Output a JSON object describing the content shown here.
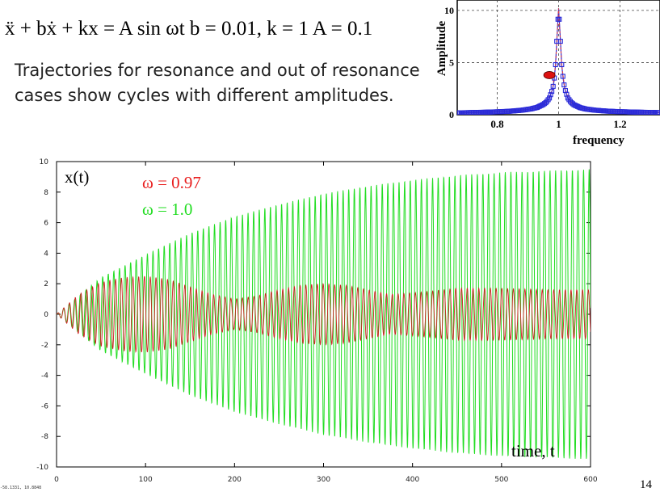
{
  "slide": {
    "equation": "ẍ + bẋ + kx = A sin ωt   b = 0.01, k = 1   A = 0.1",
    "description_lines": [
      "Trajectories for resonance and out of resonance",
      "cases show cycles with different amplitudes."
    ],
    "page_number": "14",
    "coordinate_readout": "-58.1331, 10.8848"
  },
  "chart_data": [
    {
      "type": "line",
      "title": "",
      "xlabel": "frequency",
      "ylabel": "Amplitude",
      "xlim": [
        0.67,
        1.33
      ],
      "ylim": [
        0,
        11
      ],
      "x_ticks": [
        0.8,
        1,
        1.2
      ],
      "x_tick_labels": [
        "0.8",
        "1",
        "1.2"
      ],
      "y_ticks": [
        0,
        5,
        10
      ],
      "y_tick_labels": [
        "0",
        "5",
        "10"
      ],
      "grid": true,
      "series": [
        {
          "color": "#2b2bd8",
          "x": [
            0.68,
            0.72,
            0.76,
            0.8,
            0.84,
            0.88,
            0.91,
            0.93,
            0.95,
            0.96,
            0.97,
            0.98,
            0.985,
            0.99,
            0.995,
            1.0,
            1.005,
            1.01,
            1.015,
            1.02,
            1.03,
            1.04,
            1.05,
            1.07,
            1.09,
            1.12,
            1.16,
            1.2,
            1.25,
            1.3,
            1.33
          ],
          "y": [
            0.18,
            0.21,
            0.24,
            0.28,
            0.33,
            0.43,
            0.56,
            0.7,
            0.98,
            1.2,
            1.6,
            2.4,
            3.2,
            4.8,
            7.6,
            10.2,
            7.6,
            4.8,
            3.4,
            2.5,
            1.6,
            1.2,
            0.95,
            0.68,
            0.54,
            0.43,
            0.34,
            0.29,
            0.25,
            0.22,
            0.2
          ]
        },
        {
          "color": "#e03a3a",
          "x": [
            0.68,
            0.8,
            0.88,
            0.93,
            0.96,
            0.98,
            0.99,
            1.0,
            1.01,
            1.02,
            1.04,
            1.07,
            1.12,
            1.2,
            1.33
          ],
          "y": [
            0.18,
            0.28,
            0.43,
            0.7,
            1.2,
            2.4,
            4.8,
            10.2,
            4.8,
            2.5,
            1.2,
            0.68,
            0.43,
            0.29,
            0.2
          ]
        }
      ],
      "marker_point": {
        "x": 0.97,
        "y": 3.8,
        "color": "#dd1111"
      }
    },
    {
      "type": "line",
      "title": "",
      "xlabel": "time, t",
      "ylabel": "x(t)",
      "xlim": [
        0,
        600
      ],
      "ylim": [
        -10,
        10
      ],
      "x_ticks": [
        0,
        100,
        200,
        300,
        400,
        500,
        600
      ],
      "x_tick_labels": [
        "0",
        "100",
        "200",
        "300",
        "400",
        "500",
        "600"
      ],
      "y_ticks": [
        10,
        8,
        6,
        4,
        2,
        0,
        -2,
        -4,
        -6,
        -8,
        -10
      ],
      "y_tick_labels": [
        "10",
        "8",
        "6",
        "4",
        "2",
        "0",
        "-2",
        "-4",
        "-6",
        "-8",
        "-10"
      ],
      "grid": false,
      "series": [
        {
          "name": "ω = 1.0",
          "color": "#22dd22",
          "omega": 1.0,
          "amplitude_envelope": {
            "t": [
              0,
              50,
              100,
              150,
              200,
              250,
              300,
              350,
              400,
              450,
              500,
              550,
              600
            ],
            "amp": [
              0,
              2.4,
              3.9,
              5.3,
              6.4,
              7.2,
              7.9,
              8.4,
              8.8,
              9.1,
              9.3,
              9.4,
              9.5
            ]
          }
        },
        {
          "name": "ω = 0.97",
          "color": "#cc2222",
          "omega": 0.97,
          "amplitude_envelope": {
            "t": [
              0,
              25,
              50,
              75,
              100,
              125,
              150,
              175,
              200,
              225,
              250,
              275,
              300,
              325,
              350,
              375,
              400,
              450,
              500,
              550,
              600
            ],
            "amp": [
              0,
              1.3,
              2.1,
              2.4,
              2.5,
              2.3,
              1.8,
              1.3,
              1.0,
              1.2,
              1.6,
              1.9,
              2.0,
              1.9,
              1.6,
              1.3,
              1.4,
              1.7,
              1.7,
              1.6,
              1.6
            ]
          }
        }
      ],
      "legend": [
        {
          "label": "ω = 0.97",
          "color": "#e81e1e"
        },
        {
          "label": "ω = 1.0",
          "color": "#22dd22"
        }
      ]
    }
  ]
}
